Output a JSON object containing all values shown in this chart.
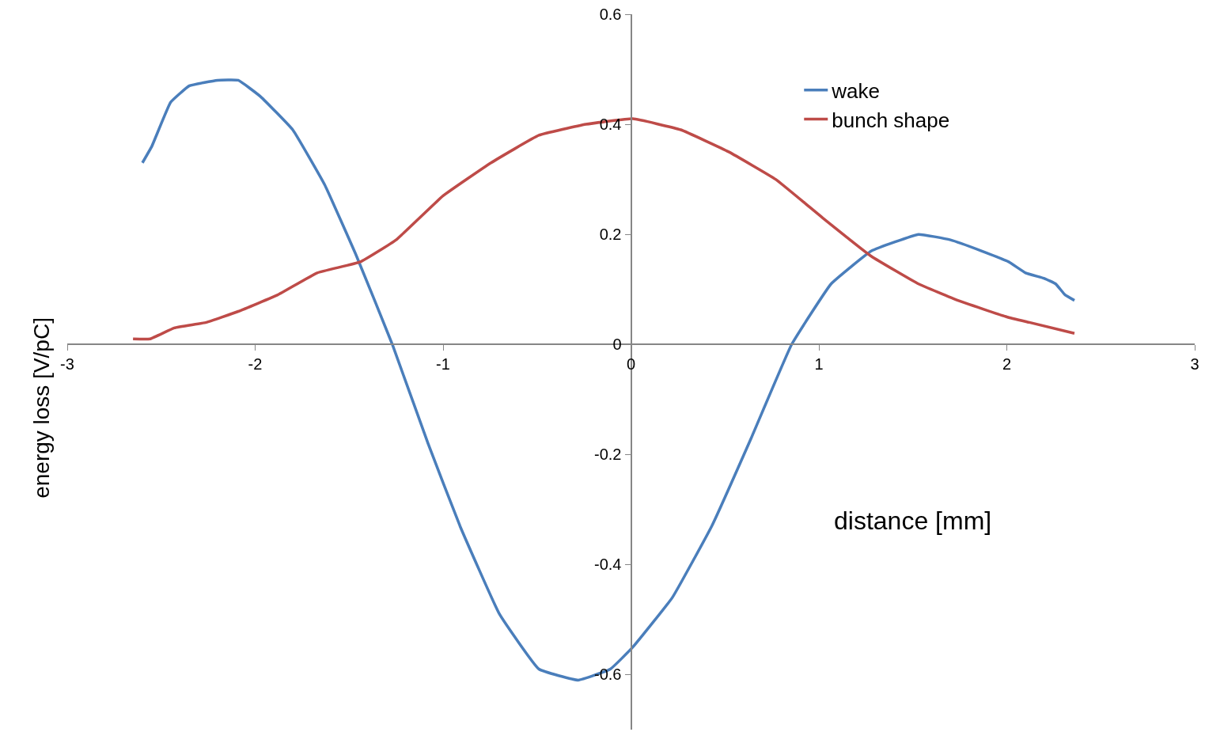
{
  "chart_data": {
    "type": "line",
    "xlabel": "distance [mm]",
    "ylabel": "energy loss [V/pC]",
    "series": [
      {
        "name": "wake",
        "color": "#4a7ebb",
        "x": [
          -2.6,
          -2.55,
          -2.45,
          -2.35,
          -2.2,
          -2.09,
          -1.97,
          -1.8,
          -1.63,
          -1.46,
          -1.27,
          -1.08,
          -0.91,
          -0.7,
          -0.49,
          -0.28,
          -0.11,
          0.01,
          0.22,
          0.43,
          0.64,
          0.855,
          1.065,
          1.28,
          1.53,
          1.7,
          1.865,
          2.01,
          2.1,
          2.2,
          2.26,
          2.31,
          2.36
        ],
        "values": [
          0.33,
          0.36,
          0.44,
          0.47,
          0.48,
          0.48,
          0.45,
          0.39,
          0.29,
          0.16,
          0.0,
          -0.18,
          -0.33,
          -0.49,
          -0.59,
          -0.61,
          -0.59,
          -0.55,
          -0.46,
          -0.33,
          -0.17,
          0.0,
          0.11,
          0.17,
          0.2,
          0.19,
          0.17,
          0.15,
          0.13,
          0.12,
          0.11,
          0.09,
          0.08
        ]
      },
      {
        "name": "bunch shape",
        "color": "#be4b48",
        "x": [
          -2.65,
          -2.56,
          -2.43,
          -2.26,
          -2.09,
          -1.88,
          -1.67,
          -1.44,
          -1.25,
          -1.0,
          -0.745,
          -0.49,
          -0.24,
          0.01,
          0.265,
          0.52,
          0.77,
          1.02,
          1.28,
          1.53,
          1.74,
          2.0,
          2.12,
          2.36
        ],
        "values": [
          0.01,
          0.01,
          0.03,
          0.04,
          0.06,
          0.09,
          0.13,
          0.15,
          0.19,
          0.27,
          0.33,
          0.38,
          0.4,
          0.41,
          0.39,
          0.35,
          0.3,
          0.23,
          0.16,
          0.11,
          0.08,
          0.05,
          0.04,
          0.02
        ]
      }
    ],
    "xlim": [
      -3,
      3
    ],
    "xticks": [
      -3,
      -2,
      -1,
      0,
      1,
      2,
      3
    ],
    "ylim": [
      -0.7,
      0.6
    ],
    "yticks": [
      -0.6,
      -0.4,
      -0.2,
      0,
      0.2,
      0.4,
      0.6
    ],
    "legend": "top right",
    "marker": "none",
    "line_style": "solid"
  }
}
